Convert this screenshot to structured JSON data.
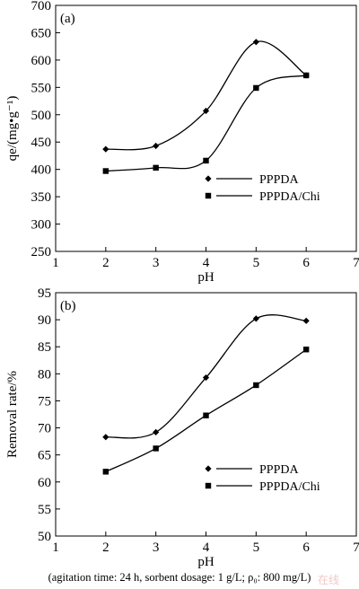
{
  "caption": "(agitation time: 24 h, sorbent dosage: 1 g/L; ρ₀: 800 mg/L)",
  "watermark": "在线",
  "chart_data": [
    {
      "type": "line",
      "panel_label": "(a)",
      "xlabel": "pH",
      "ylabel": "qe/(mg•g⁻¹)",
      "xlim": [
        1,
        7
      ],
      "ylim": [
        250,
        700
      ],
      "xticks": [
        1,
        2,
        3,
        4,
        5,
        6,
        7
      ],
      "yticks": [
        250,
        300,
        350,
        400,
        450,
        500,
        550,
        600,
        650,
        700
      ],
      "x": [
        2,
        3,
        4,
        5,
        6
      ],
      "series": [
        {
          "name": "PPPDA",
          "marker": "diamond",
          "values": [
            437,
            443,
            507,
            633,
            572
          ]
        },
        {
          "name": "PPPDA/Chi",
          "marker": "square",
          "values": [
            397,
            403,
            416,
            549,
            572
          ]
        }
      ],
      "legend": "center-right",
      "grid": false
    },
    {
      "type": "line",
      "panel_label": "(b)",
      "xlabel": "pH",
      "ylabel": "Removal rate/%",
      "xlim": [
        1,
        7
      ],
      "ylim": [
        50,
        95
      ],
      "xticks": [
        1,
        2,
        3,
        4,
        5,
        6,
        7
      ],
      "yticks": [
        50,
        55,
        60,
        65,
        70,
        75,
        80,
        85,
        90,
        95
      ],
      "x": [
        2,
        3,
        4,
        5,
        6
      ],
      "series": [
        {
          "name": "PPPDA",
          "marker": "diamond",
          "values": [
            68.3,
            69.2,
            79.3,
            90.2,
            89.8
          ]
        },
        {
          "name": "PPPDA/Chi",
          "marker": "square",
          "values": [
            61.9,
            66.2,
            72.3,
            77.9,
            84.5
          ]
        }
      ],
      "legend": "bottom-right",
      "grid": false
    }
  ]
}
